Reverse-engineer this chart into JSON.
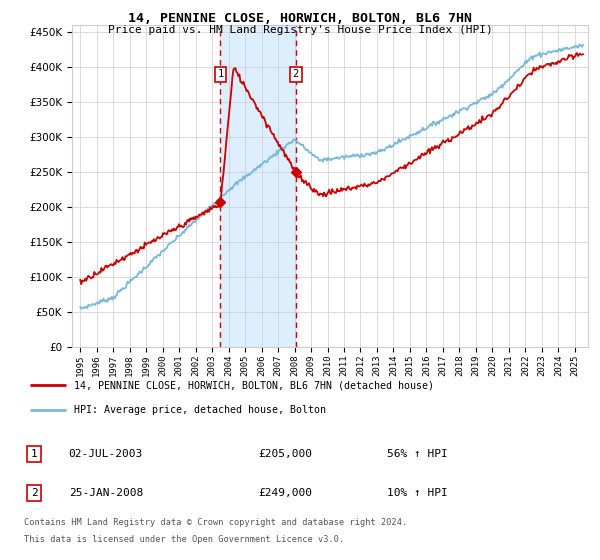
{
  "title": "14, PENNINE CLOSE, HORWICH, BOLTON, BL6 7HN",
  "subtitle": "Price paid vs. HM Land Registry's House Price Index (HPI)",
  "legend_line1": "14, PENNINE CLOSE, HORWICH, BOLTON, BL6 7HN (detached house)",
  "legend_line2": "HPI: Average price, detached house, Bolton",
  "sale1_label": "1",
  "sale1_date": "02-JUL-2003",
  "sale1_price": "£205,000",
  "sale1_hpi": "56% ↑ HPI",
  "sale1_x": 2003.5,
  "sale1_y": 205000,
  "sale2_label": "2",
  "sale2_date": "25-JAN-2008",
  "sale2_price": "£249,000",
  "sale2_hpi": "10% ↑ HPI",
  "sale2_x": 2008.08,
  "sale2_y": 249000,
  "footnote_line1": "Contains HM Land Registry data © Crown copyright and database right 2024.",
  "footnote_line2": "This data is licensed under the Open Government Licence v3.0.",
  "house_color": "#cc0000",
  "hpi_color": "#7ab8d9",
  "shade_color": "#ddeeff",
  "marker_box_color": "#cc0000",
  "ylim_min": 0,
  "ylim_max": 460000,
  "yticks": [
    0,
    50000,
    100000,
    150000,
    200000,
    250000,
    300000,
    350000,
    400000,
    450000
  ],
  "xmin": 1994.5,
  "xmax": 2025.8,
  "xlabel_start": 1995,
  "xlabel_end": 2025,
  "background": "#ffffff",
  "grid_color": "#cccccc"
}
